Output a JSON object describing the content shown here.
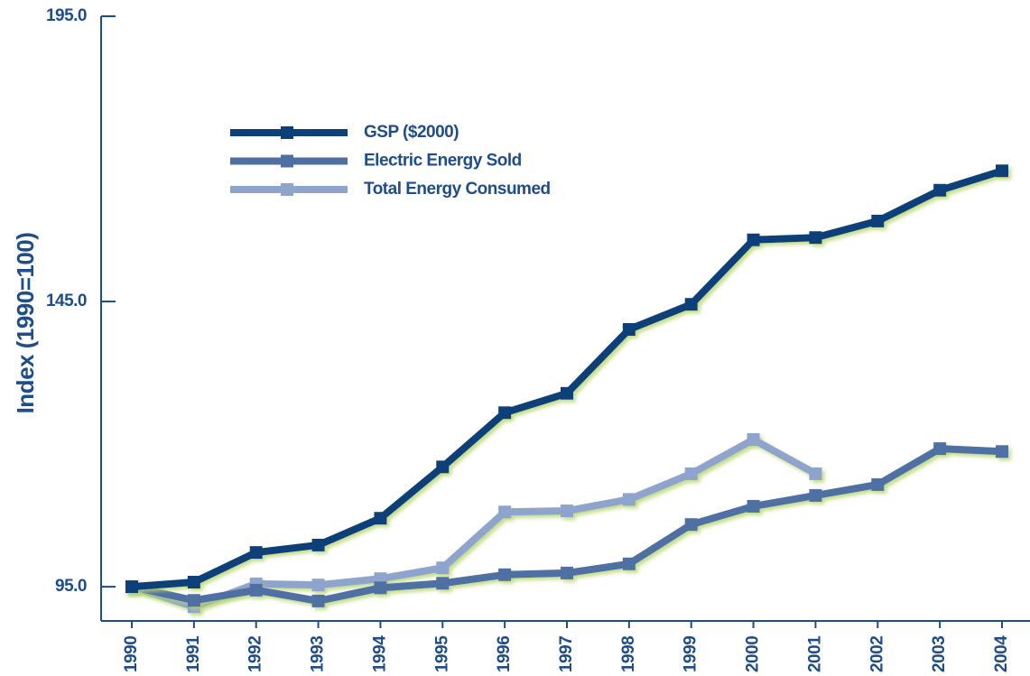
{
  "chart_data": {
    "type": "line",
    "y_label": "Index (1990=100)",
    "categories": [
      "1990",
      "1991",
      "1992",
      "1993",
      "1994",
      "1995",
      "1996",
      "1997",
      "1998",
      "1999",
      "2000",
      "2001",
      "2002",
      "2003",
      "2004"
    ],
    "series": [
      {
        "name": "GSP ($2000)",
        "color": "#0d3f78",
        "values": [
          95,
          95.8,
          101.0,
          102.3,
          107.0,
          116.0,
          125.5,
          128.9,
          140.1,
          144.5,
          155.8,
          156.2,
          159.1,
          164.5,
          167.9
        ]
      },
      {
        "name": "Electric Energy Sold",
        "color": "#4f6fa3",
        "values": [
          95,
          92.6,
          94.4,
          92.5,
          94.8,
          95.6,
          97.1,
          97.4,
          99.0,
          105.9,
          109.1,
          111.0,
          112.9,
          119.2,
          118.7
        ]
      },
      {
        "name": "Total Energy Consumed",
        "color": "#8ea4cc",
        "values": [
          95,
          91.5,
          95.5,
          95.3,
          96.4,
          98.3,
          108.1,
          108.3,
          110.3,
          114.8,
          120.8,
          114.8,
          null,
          null,
          null
        ]
      }
    ],
    "ylim": [
      89,
      195
    ],
    "yticks": [
      {
        "value": 95,
        "label": "95.0"
      },
      {
        "value": 145,
        "label": "145.0"
      },
      {
        "value": 195,
        "label": "195.0"
      }
    ],
    "legend": "upper left"
  }
}
